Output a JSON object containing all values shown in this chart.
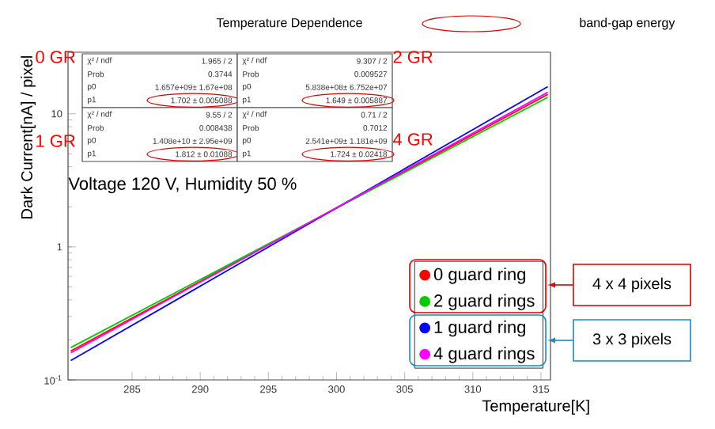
{
  "chart_data": {
    "type": "line",
    "title": "Temperature Dependence",
    "xlabel": "Temperature[K]",
    "ylabel": "Dark Current[nA] / pixel",
    "x": [
      280.5,
      315.5
    ],
    "series": [
      {
        "name": "0 guard ring",
        "color": "#ff0000",
        "values": [
          0.165,
          14
        ]
      },
      {
        "name": "2 guard rings",
        "color": "#00cc00",
        "values": [
          0.175,
          13.3
        ]
      },
      {
        "name": "1 guard ring",
        "color": "#0000ff",
        "values": [
          0.14,
          16
        ]
      },
      {
        "name": "4 guard rings",
        "color": "#ff00ff",
        "values": [
          0.16,
          14.5
        ]
      }
    ],
    "xlim": [
      280.3,
      315.7
    ],
    "ylim": [
      0.1,
      29
    ],
    "log": true,
    "xticks": [
      285,
      290,
      295,
      300,
      305,
      310,
      315
    ],
    "yticks": [
      {
        "value": 0.1,
        "label": "10$^{-1}$"
      },
      1,
      10
    ],
    "legend": "bottom right",
    "marker": "none",
    "line_style": "solid",
    "grid": false,
    "annotations": [
      "χ² / ndf",
      "1.965 / 2",
      "Prob",
      "0.3744",
      "p0",
      "1.657e+09± 1.67e+08",
      "p1",
      "1.702 ± 0.005088",
      "χ² / ndf",
      "9.307 / 2",
      "Prob",
      "0.009527",
      "p0",
      "5.838e+08± 6.752e+07",
      "p1",
      "1.649 ± 0.005887",
      "χ² / ndf",
      "9.55 / 2",
      "Prob",
      "0.008438",
      "p0",
      "1.408e+10 ± 2.95e+09",
      "p1",
      "1.812 ± 0.01088",
      "χ² / ndf",
      "0.71 / 2",
      "Prob",
      "0.7012",
      "p0",
      "2.541e+09± 1.181e+09",
      "p1",
      "1.724 ± 0.02418",
      "0 GR",
      "2 GR",
      "1 GR",
      "4 GR",
      "Voltage 120 V, Humidity 50 %",
      "band-gap energy",
      "4 x 4 pixels",
      "3 x 3 pixels"
    ]
  }
}
